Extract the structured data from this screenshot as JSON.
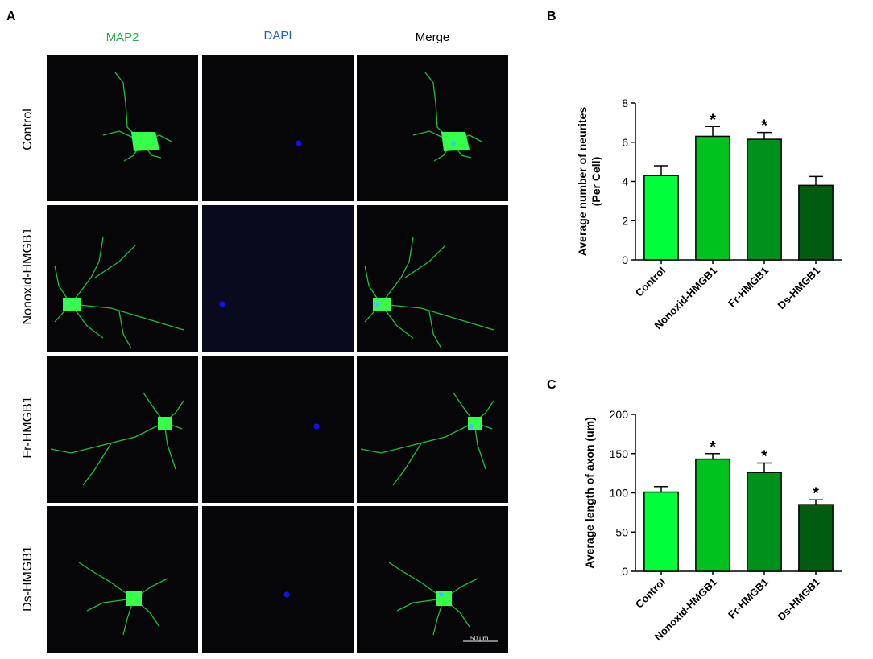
{
  "panel_a": {
    "letter": "A",
    "columns": [
      {
        "label": "MAP2",
        "color": "#22b14c"
      },
      {
        "label": "DAPI",
        "color": "#1f5fbf"
      },
      {
        "label": "Merge",
        "color": "#000000"
      }
    ],
    "rows": [
      "Control",
      "Nonoxid-HMGB1",
      "Fr-HMGB1",
      "Ds-HMGB1"
    ],
    "scale_bar": "50 μm"
  },
  "colors": {
    "control": "#00ff3a",
    "nonoxid": "#00c21e",
    "fr": "#00911c",
    "ds": "#005d10",
    "neurite": "#22e040",
    "nucleus": "#1010ff"
  },
  "chart_data": [
    {
      "panel": "B",
      "type": "bar",
      "categories": [
        "Control",
        "Nonoxid-HMGB1",
        "Fr-HMGB1",
        "Ds-HMGB1"
      ],
      "values": [
        4.3,
        6.3,
        6.15,
        3.8
      ],
      "errors": [
        0.5,
        0.5,
        0.35,
        0.45
      ],
      "significance": [
        "",
        "*",
        "*",
        ""
      ],
      "ylabel_line1": "Average number of neurites",
      "ylabel_line2": "(Per Cell)",
      "ylim": [
        0,
        8
      ],
      "yticks": [
        0,
        2,
        4,
        6,
        8
      ],
      "grid": false
    },
    {
      "panel": "C",
      "type": "bar",
      "categories": [
        "Control",
        "Nonoxid-HMGB1",
        "Fr-HMGB1",
        "Ds-HMGB1"
      ],
      "values": [
        101,
        143,
        126,
        85
      ],
      "errors": [
        7,
        7,
        12,
        6
      ],
      "significance": [
        "",
        "*",
        "*",
        "*"
      ],
      "ylabel_line1": "Average length of axon (um)",
      "ylabel_line2": "",
      "ylim": [
        0,
        200
      ],
      "yticks": [
        0,
        50,
        100,
        150,
        200
      ],
      "grid": false
    }
  ]
}
